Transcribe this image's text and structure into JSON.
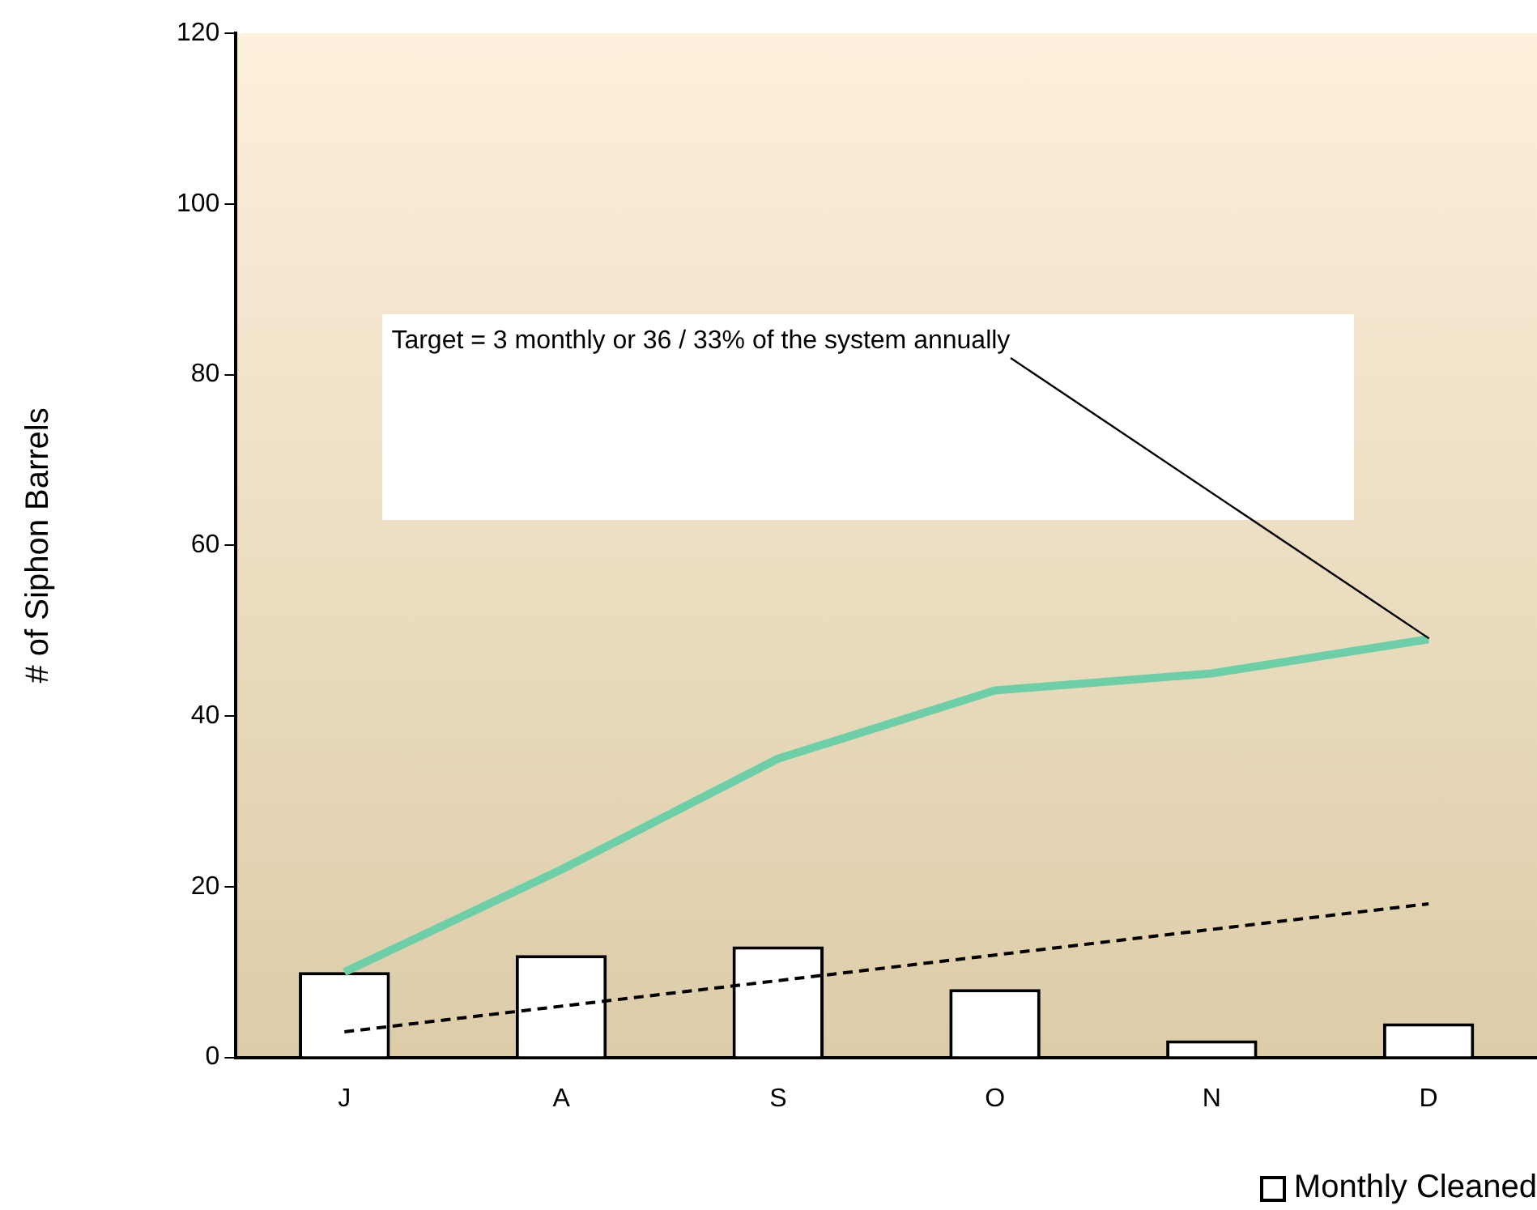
{
  "chart_data": {
    "type": "bar",
    "ylabel": "# of Siphon Barrels",
    "categories": [
      "J",
      "A",
      "S",
      "O",
      "N",
      "D"
    ],
    "series": [
      {
        "name": "Monthly Cleaned",
        "color": "#ffffff",
        "values": [
          10,
          12,
          13,
          8,
          2,
          4
        ]
      },
      {
        "type": "line",
        "color": "#6dcfa8",
        "values": [
          10,
          22,
          35,
          43,
          45,
          49
        ]
      },
      {
        "type": "line",
        "color": "#000000",
        "line_style": "dashed",
        "values": [
          3,
          6,
          9,
          12,
          15,
          18
        ]
      }
    ],
    "ylim": [
      0,
      120
    ],
    "yticks": [
      0,
      20,
      40,
      60,
      80,
      100,
      120
    ],
    "grid": false,
    "legend": "bottom",
    "marker": "none",
    "annotations": [
      {
        "text": "Target = 3 monthly or 36 / 33% of the system annually",
        "x": "D",
        "y": 49
      }
    ]
  }
}
